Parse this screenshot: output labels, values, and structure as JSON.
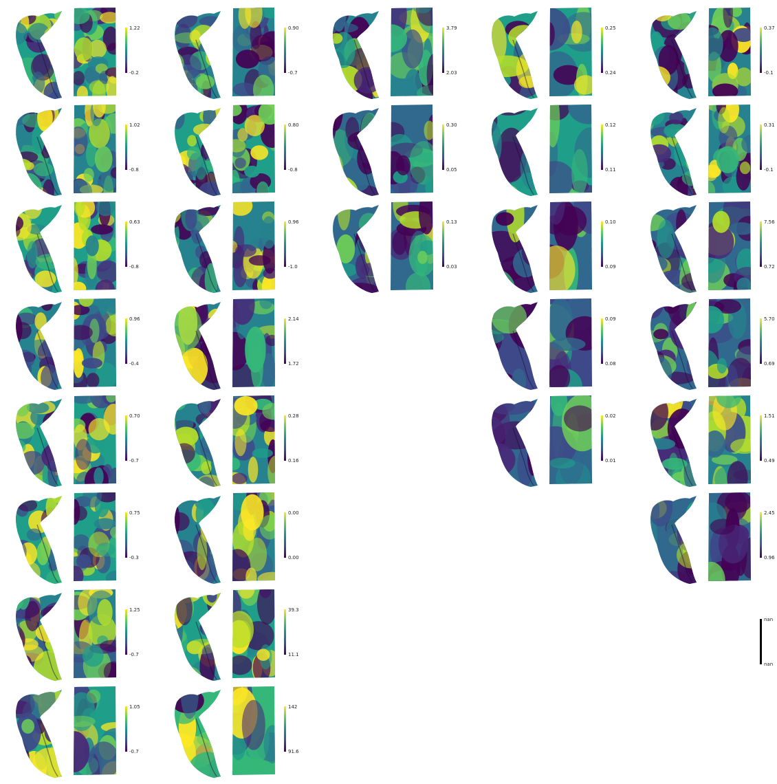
{
  "colors": {
    "viridis": [
      "#440154",
      "#482878",
      "#3e4989",
      "#31688e",
      "#26828e",
      "#1f9e89",
      "#35b779",
      "#6ece58",
      "#b5de2b",
      "#fde725"
    ],
    "nan_bar": "#000000"
  },
  "columns": [
    [
      {
        "max": "1.22",
        "min": "-0.2",
        "seed": 1,
        "bias": 0.55,
        "rough": 1.0
      },
      {
        "max": "1.02",
        "min": "-0.8",
        "seed": 2,
        "bias": 0.45,
        "rough": 0.9
      },
      {
        "max": "0.63",
        "min": "-0.8",
        "seed": 3,
        "bias": 0.55,
        "rough": 0.9
      },
      {
        "max": "0.96",
        "min": "-0.4",
        "seed": 4,
        "bias": 0.4,
        "rough": 0.9
      },
      {
        "max": "0.70",
        "min": "-0.7",
        "seed": 5,
        "bias": 0.55,
        "rough": 0.9
      },
      {
        "max": "0.75",
        "min": "-0.3",
        "seed": 6,
        "bias": 0.5,
        "rough": 1.0
      },
      {
        "max": "1.25",
        "min": "-0.7",
        "seed": 7,
        "bias": 0.45,
        "rough": 0.7
      },
      {
        "max": "1.05",
        "min": "-0.7",
        "seed": 8,
        "bias": 0.5,
        "rough": 0.6
      }
    ],
    [
      {
        "max": "0.90",
        "min": "-0.7",
        "seed": 11,
        "bias": 0.45,
        "rough": 0.9
      },
      {
        "max": "0.80",
        "min": "-0.8",
        "seed": 12,
        "bias": 0.5,
        "rough": 0.9
      },
      {
        "max": "0.96",
        "min": "-1.0",
        "seed": 13,
        "bias": 0.45,
        "rough": 0.8
      },
      {
        "max": "2.14",
        "min": "1.72",
        "seed": 14,
        "bias": 0.45,
        "rough": 0.4
      },
      {
        "max": "0.28",
        "min": "0.16",
        "seed": 15,
        "bias": 0.45,
        "rough": 0.8
      },
      {
        "max": "0.00",
        "min": "0.00",
        "seed": 16,
        "bias": 0.45,
        "rough": 0.7
      },
      {
        "max": "39.3",
        "min": "11.1",
        "seed": 17,
        "bias": 0.5,
        "rough": 0.6
      },
      {
        "max": "142",
        "min": "91.6",
        "seed": 18,
        "bias": 0.6,
        "rough": 0.25
      }
    ],
    [
      {
        "max": "3.79",
        "min": "2.03",
        "seed": 21,
        "bias": 0.4,
        "rough": 0.5
      },
      {
        "max": "0.30",
        "min": "0.05",
        "seed": 22,
        "bias": 0.3,
        "rough": 0.5
      },
      {
        "max": "0.13",
        "min": "0.03",
        "seed": 23,
        "bias": 0.35,
        "rough": 0.45
      },
      null,
      null,
      null,
      null,
      null
    ],
    [
      {
        "max": "0.25",
        "min": "0.24",
        "seed": 31,
        "bias": 0.55,
        "rough": 0.15
      },
      {
        "max": "0.12",
        "min": "0.11",
        "seed": 32,
        "bias": 0.5,
        "rough": 0.15
      },
      {
        "max": "0.10",
        "min": "0.09",
        "seed": 33,
        "bias": 0.35,
        "rough": 0.15
      },
      {
        "max": "0.09",
        "min": "0.08",
        "seed": 34,
        "bias": 0.25,
        "rough": 0.15
      },
      {
        "max": "0.02",
        "min": "0.01",
        "seed": 35,
        "bias": 0.35,
        "rough": 0.15
      },
      null,
      null,
      null
    ],
    [
      {
        "max": "0.37",
        "min": "-0.1",
        "seed": 41,
        "bias": 0.45,
        "rough": 0.7
      },
      {
        "max": "0.31",
        "min": "-0.1",
        "seed": 42,
        "bias": 0.45,
        "rough": 0.9
      },
      {
        "max": "7.56",
        "min": "0.72",
        "seed": 43,
        "bias": 0.3,
        "rough": 0.5
      },
      {
        "max": "5.70",
        "min": "0.69",
        "seed": 44,
        "bias": 0.3,
        "rough": 0.5
      },
      {
        "max": "1.51",
        "min": "0.49",
        "seed": 45,
        "bias": 0.4,
        "rough": 0.6
      },
      {
        "max": "2.45",
        "min": "0.96",
        "seed": 46,
        "bias": 0.3,
        "rough": 0.5
      },
      {
        "nan": true,
        "max": "nan",
        "min": "nan"
      },
      null
    ]
  ]
}
